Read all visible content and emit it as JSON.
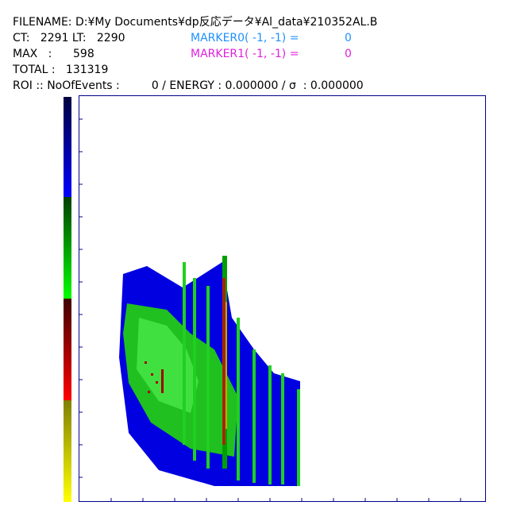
{
  "header": {
    "filename": "FILENAME: D:¥My Documents¥dp反応データ¥Al_data¥210352AL.B",
    "ct": "CT:   2291 LT:   2290",
    "max": "MAX   :      598",
    "total": "TOTAL :   131319",
    "roi": "ROI :: NoOfEvents :         0 / ENERGY : 0.000000 / σ  : 0.000000"
  },
  "markers": [
    {
      "label": "MARKER0( -1, -1) =",
      "value": "0"
    },
    {
      "label": "MARKER1( -1, -1) =",
      "value": "0"
    }
  ]
}
